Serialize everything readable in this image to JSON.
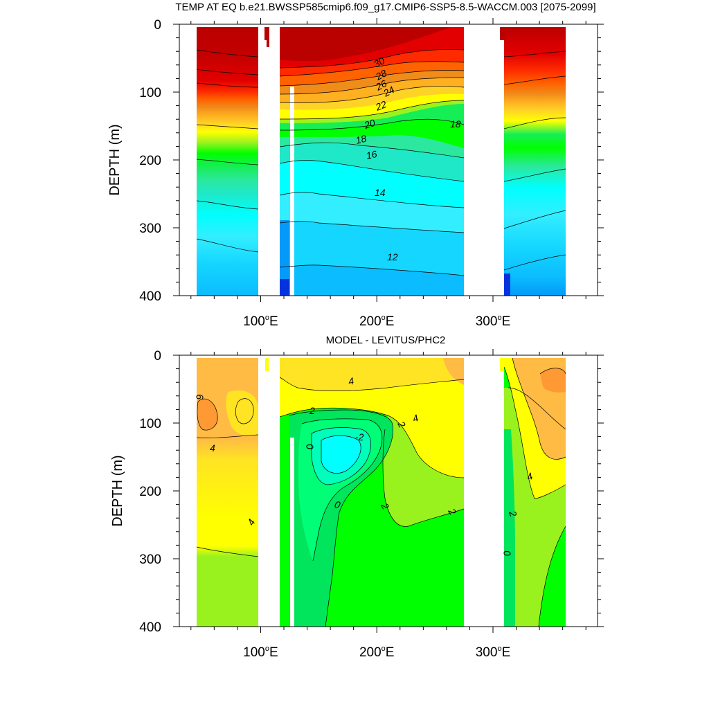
{
  "chart_data": [
    {
      "type": "heatmap",
      "subtype": "filled-contour depth section",
      "title": "TEMP AT EQ b.e21.BWSSP585cmip6.f09_g17.CMIP6-SSP5-8.5-WACCM.003 [2075-2099]",
      "ylabel": "DEPTH (m)",
      "xlabel": "",
      "x_axis": {
        "range": [
          30,
          390
        ],
        "ticks": [
          100,
          200,
          300
        ],
        "tick_labels": [
          "100°E",
          "200°E",
          "300°E"
        ]
      },
      "y_axis": {
        "range": [
          0,
          400
        ],
        "reversed": true,
        "ticks": [
          0,
          100,
          200,
          300,
          400
        ],
        "tick_labels": [
          "0",
          "100",
          "200",
          "300",
          "400"
        ]
      },
      "data_extent_x": [
        45,
        370
      ],
      "land_gaps": [
        [
          98,
          117
        ],
        [
          279,
          314
        ]
      ],
      "contour_labels": [
        "30",
        "28",
        "26",
        "24",
        "22",
        "20",
        "18",
        "16",
        "14",
        "12",
        "18"
      ],
      "isotherms": [
        {
          "value": 28,
          "depth": [
            {
              "x": 120,
              "d": 60
            },
            {
              "x": 150,
              "d": 55
            },
            {
              "x": 200,
              "d": 65
            },
            {
              "x": 240,
              "d": 90
            },
            {
              "x": 279,
              "d": 112
            }
          ]
        },
        {
          "value": 22,
          "depth": [
            {
              "x": 120,
              "d": 110
            },
            {
              "x": 150,
              "d": 115
            },
            {
              "x": 200,
              "d": 125
            },
            {
              "x": 240,
              "d": 145
            },
            {
              "x": 279,
              "d": 160
            }
          ]
        },
        {
          "value": 18,
          "depth": [
            {
              "x": 120,
              "d": 175
            },
            {
              "x": 150,
              "d": 170
            },
            {
              "x": 200,
              "d": 165
            },
            {
              "x": 240,
              "d": 175
            },
            {
              "x": 279,
              "d": 170
            }
          ]
        },
        {
          "value": 14,
          "depth": [
            {
              "x": 120,
              "d": 255
            },
            {
              "x": 150,
              "d": 260
            },
            {
              "x": 200,
              "d": 255
            },
            {
              "x": 240,
              "d": 262
            },
            {
              "x": 279,
              "d": 262
            }
          ]
        },
        {
          "value": 12,
          "depth": [
            {
              "x": 120,
              "d": 350
            },
            {
              "x": 150,
              "d": 350
            },
            {
              "x": 200,
              "d": 355
            },
            {
              "x": 240,
              "d": 360
            },
            {
              "x": 279,
              "d": 360
            }
          ]
        }
      ]
    },
    {
      "type": "heatmap",
      "subtype": "filled-contour depth section",
      "title": "MODEL - LEVITUS/PHC2",
      "ylabel": "DEPTH (m)",
      "xlabel": "",
      "x_axis": {
        "range": [
          30,
          390
        ],
        "ticks": [
          100,
          200,
          300
        ],
        "tick_labels": [
          "100°E",
          "200°E",
          "300°E"
        ]
      },
      "y_axis": {
        "range": [
          0,
          400
        ],
        "reversed": true,
        "ticks": [
          0,
          100,
          200,
          300,
          400
        ],
        "tick_labels": [
          "0",
          "100",
          "200",
          "300",
          "400"
        ]
      },
      "data_extent_x": [
        45,
        370
      ],
      "land_gaps": [
        [
          98,
          117
        ],
        [
          279,
          314
        ]
      ],
      "contour_labels": [
        "6",
        "4",
        "4",
        "4",
        "2",
        "2",
        "2",
        "2",
        "-2",
        "0",
        "0",
        "4",
        "4",
        "2",
        "0"
      ],
      "anomaly_regions": [
        {
          "region": "Indian Ocean upper 130 m",
          "value_range": [
            4,
            6
          ]
        },
        {
          "region": "Indian Ocean below 280 m",
          "value_range": [
            2,
            3
          ]
        },
        {
          "region": "central Pacific 100-200 m",
          "value_range": [
            -2,
            0
          ]
        },
        {
          "region": "east Pacific below 260 m",
          "value_range": [
            1,
            2
          ]
        },
        {
          "region": "Atlantic upper 150 m",
          "value_range": [
            4,
            8
          ]
        }
      ]
    }
  ],
  "colors": {
    "temperature_scale": [
      "#0433de",
      "#0a66f4",
      "#049af9",
      "#0bbcff",
      "#15d6ff",
      "#33eeff",
      "#00ffff",
      "#1fe8c8",
      "#2be89e",
      "#16ee55",
      "#00ff00",
      "#9cf21e",
      "#ffff00",
      "#ffd326",
      "#ffb020",
      "#f08c1a",
      "#ff6200",
      "#ff2a00",
      "#e20000",
      "#bb0000"
    ],
    "anomaly_scale": [
      "#00ffff",
      "#00ffbb",
      "#00ff77",
      "#00e55b",
      "#00ff00",
      "#99f21e",
      "#ffe423",
      "#ffbb44",
      "#ff9933"
    ],
    "land": "#ffffff"
  }
}
